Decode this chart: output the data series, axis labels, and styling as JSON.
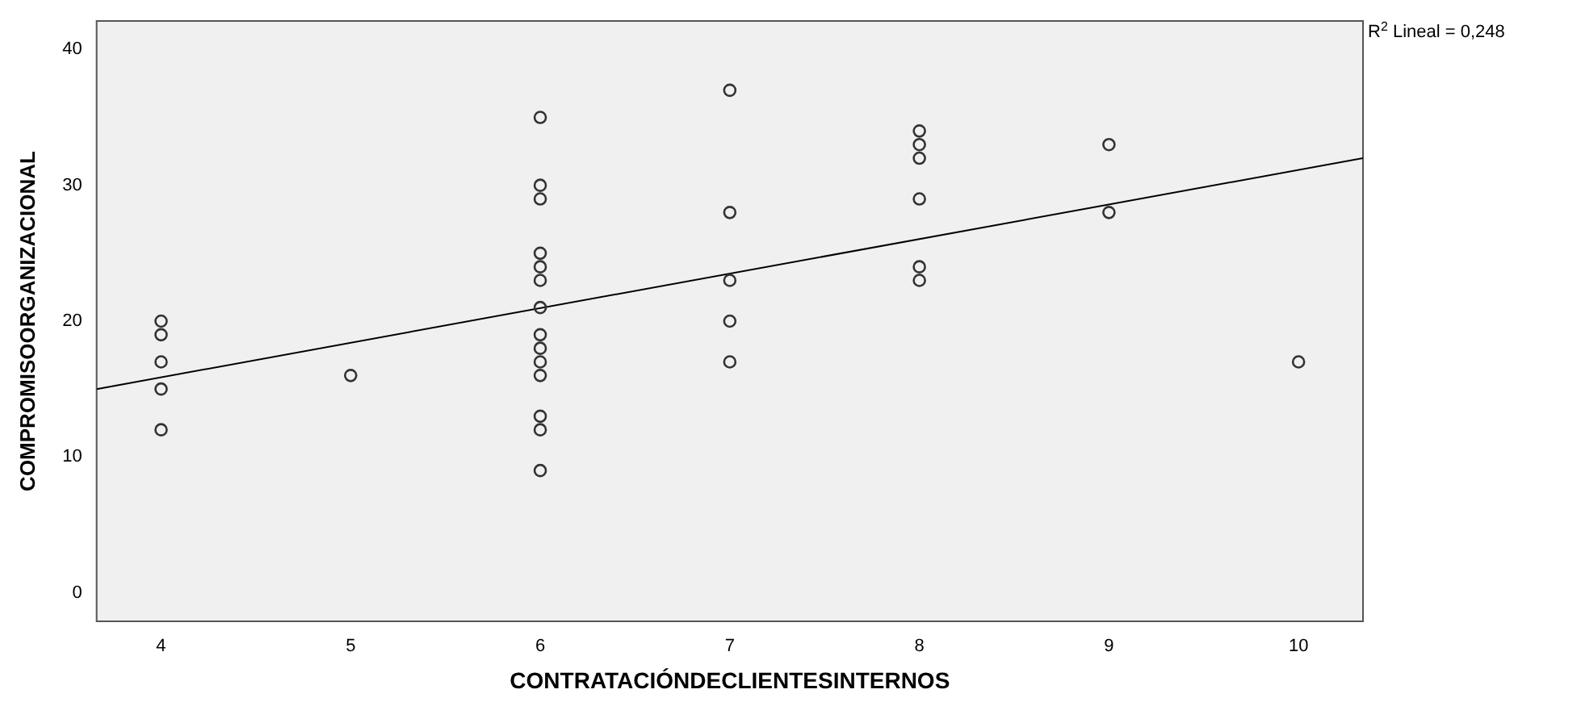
{
  "chart_data": {
    "type": "scatter",
    "xlabel": "CONTRATACIÓNDECLIENTESINTERNOS",
    "ylabel": "COMPROMISOORGANIZACIONAL",
    "xlim": [
      3.66,
      10.34
    ],
    "xticks": [
      4,
      5,
      6,
      7,
      8,
      9,
      10
    ],
    "ylim": [
      -2.1,
      42.1
    ],
    "yticks": [
      0,
      10,
      20,
      30,
      40
    ],
    "grid": false,
    "legend": false,
    "marker": "circle",
    "annotations": [
      "R$^{2}$ Lineal = 0,248"
    ],
    "series": [
      {
        "color": "#333333",
        "x": [
          4,
          4,
          4,
          4,
          4,
          5,
          6,
          6,
          6,
          6,
          6,
          6,
          6,
          6,
          6,
          6,
          6,
          6,
          6,
          6,
          7,
          7,
          7,
          7,
          7,
          8,
          8,
          8,
          8,
          8,
          8,
          9,
          9,
          10
        ],
        "values": [
          20,
          19,
          17,
          15,
          12,
          16,
          35,
          30,
          29,
          25,
          24,
          23,
          21,
          19,
          18,
          17,
          16,
          13,
          12,
          9,
          37,
          28,
          23,
          20,
          17,
          34,
          33,
          32,
          29,
          24,
          23,
          33,
          28,
          17
        ]
      },
      {
        "type": "line",
        "color": "#000000",
        "marker": "none",
        "x": [
          3.66,
          10.34
        ],
        "values": [
          15.0,
          32.0
        ]
      }
    ]
  }
}
